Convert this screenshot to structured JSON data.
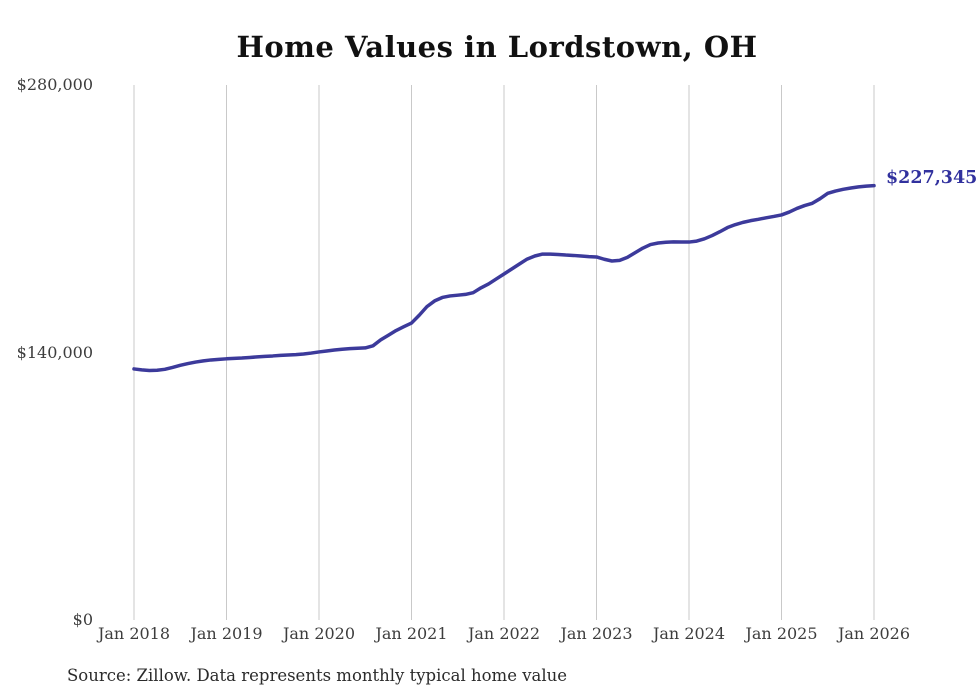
{
  "title": "Home Values in Lordstown, OH",
  "end_label": "$227,345",
  "source_note": "Source: Zillow. Data represents monthly typical home value",
  "colors": {
    "line": "#3c3a9b",
    "end_label": "#31319e",
    "gridline": "#c9c9c9",
    "axis_text": "#3d3d3d",
    "title_text": "#111111",
    "background": "#ffffff"
  },
  "chart_data": {
    "type": "line",
    "title": "Home Values in Lordstown, OH",
    "xlabel": "",
    "ylabel": "",
    "ylim": [
      0,
      280000
    ],
    "grid": "vertical-only",
    "frequency": "monthly",
    "x_start": "Jan 2018",
    "x_end": "Jan 2026",
    "x_tick_labels": [
      "Jan 2018",
      "Jan 2019",
      "Jan 2020",
      "Jan 2021",
      "Jan 2022",
      "Jan 2023",
      "Jan 2024",
      "Jan 2025",
      "Jan 2026"
    ],
    "y_tick_labels": [
      "$280,000",
      "$140,000",
      "$0"
    ],
    "y_tick_values": [
      280000,
      140000,
      0
    ],
    "final_value": 227345,
    "final_value_label": "$227,345",
    "series_name": "Typical home value",
    "values": [
      131400,
      130900,
      130600,
      130700,
      131200,
      132200,
      133300,
      134200,
      135000,
      135600,
      136100,
      136400,
      136700,
      136900,
      137100,
      137400,
      137700,
      138000,
      138200,
      138500,
      138700,
      138900,
      139200,
      139700,
      140300,
      140800,
      141300,
      141700,
      142000,
      142200,
      142400,
      143500,
      146600,
      149000,
      151500,
      153500,
      155400,
      159500,
      164000,
      167000,
      168800,
      169600,
      170000,
      170400,
      171300,
      173800,
      175900,
      178500,
      181100,
      183700,
      186300,
      188900,
      190500,
      191500,
      191500,
      191300,
      191000,
      190800,
      190500,
      190200,
      190000,
      188800,
      187900,
      188200,
      189800,
      192200,
      194600,
      196500,
      197300,
      197700,
      197900,
      197800,
      197800,
      198300,
      199500,
      201200,
      203200,
      205400,
      206900,
      208100,
      209000,
      209700,
      210500,
      211200,
      212000,
      213500,
      215400,
      216900,
      218100,
      220500,
      223300,
      224500,
      225400,
      226100,
      226700,
      227100,
      227345
    ]
  }
}
